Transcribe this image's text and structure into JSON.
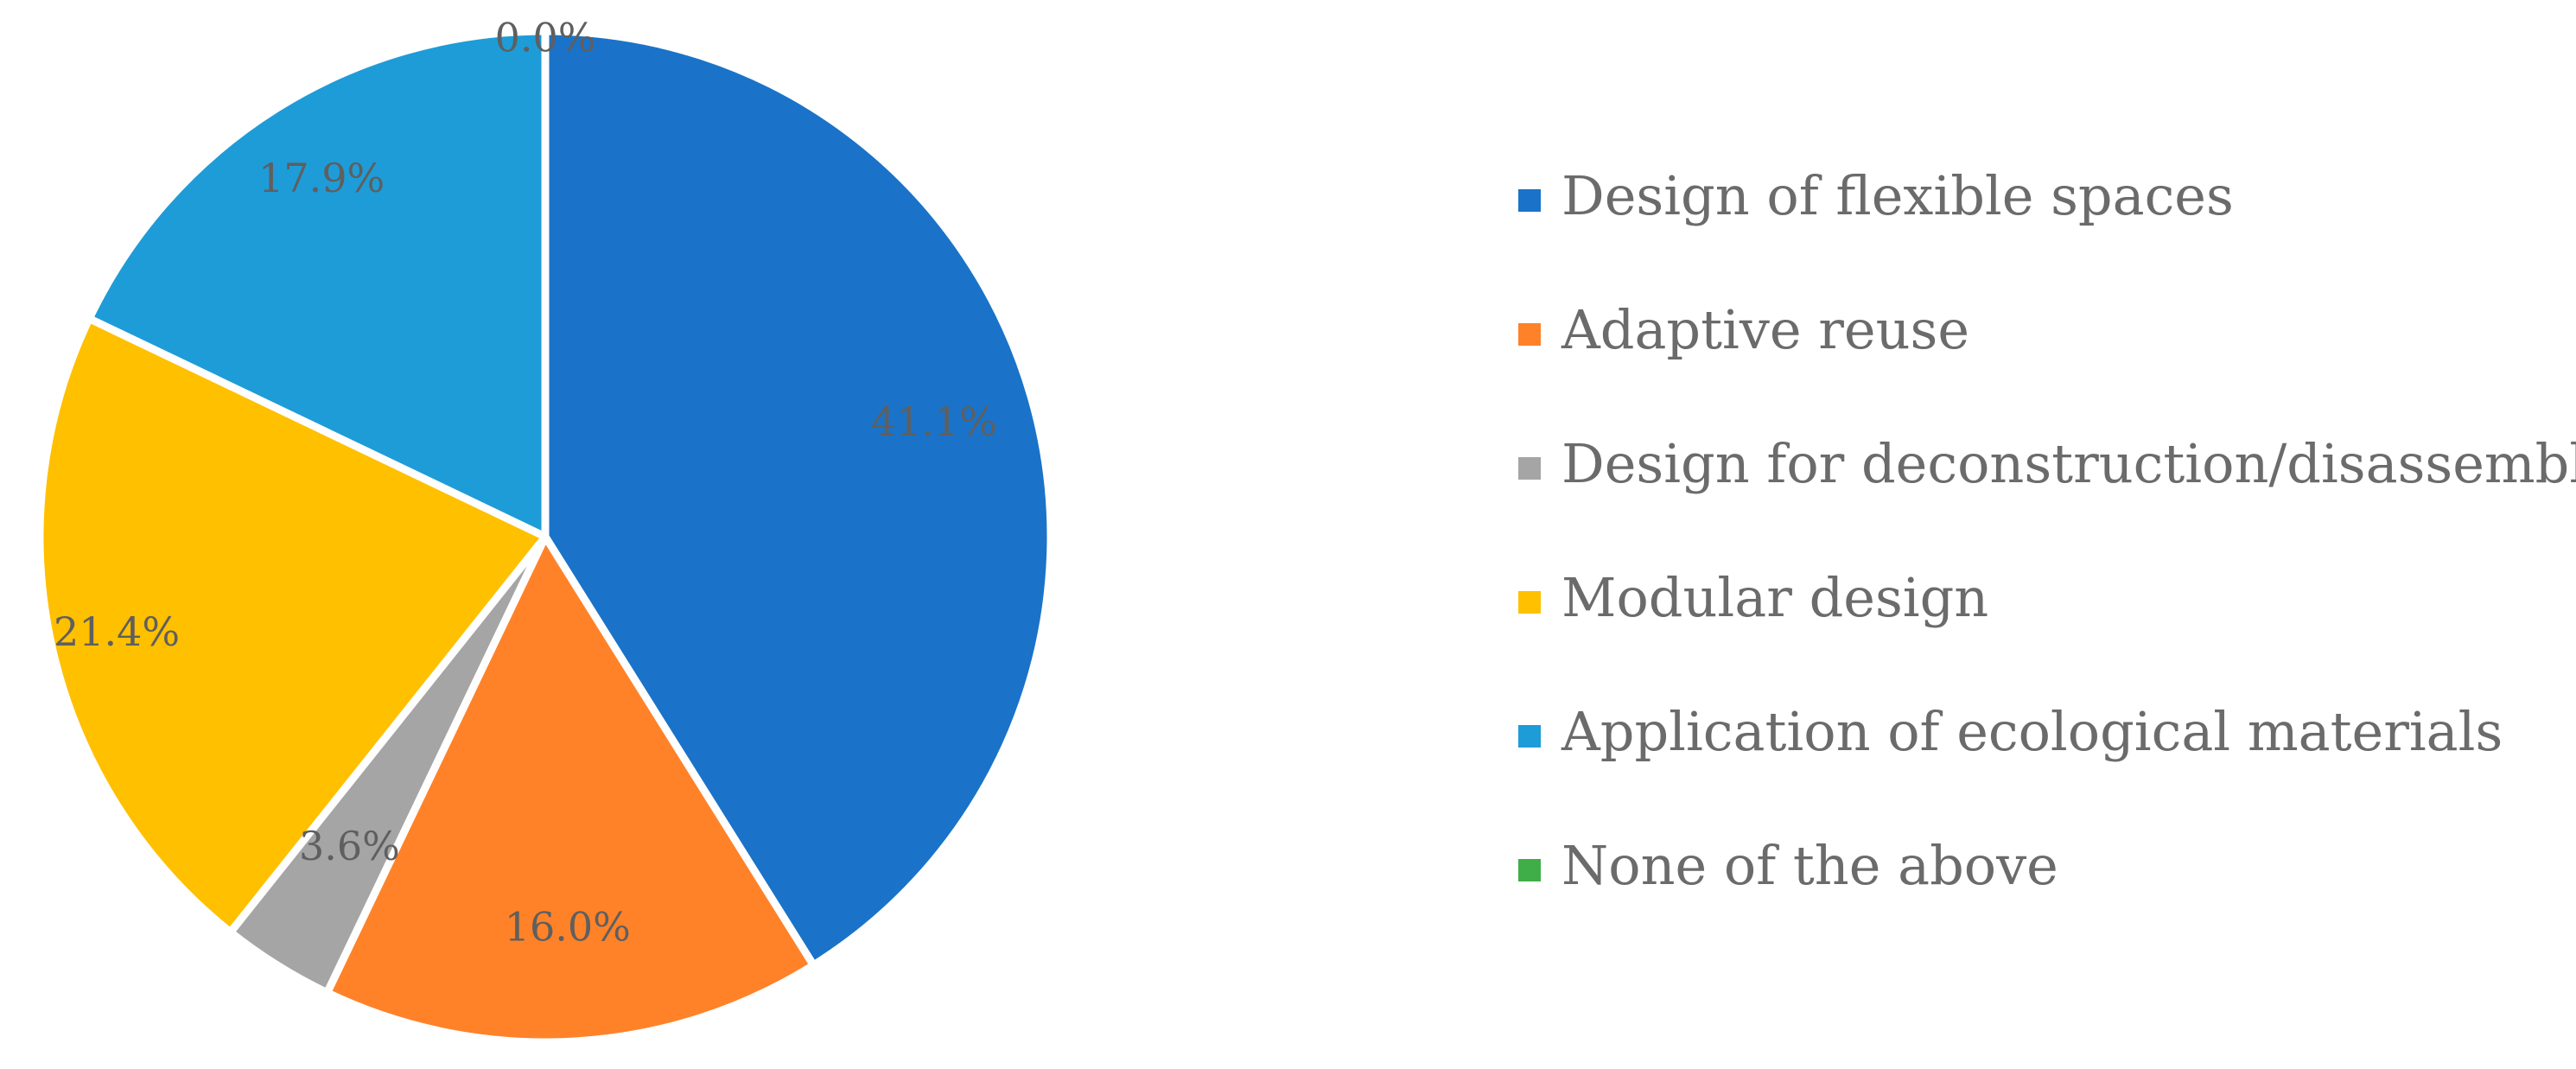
{
  "chart_data": {
    "type": "pie",
    "start_angle_deg": 0,
    "direction": "clockwise",
    "slices": [
      {
        "label": "Design of flexible spaces",
        "value": 41.1,
        "display": "41.1%",
        "color": "#1a73c8"
      },
      {
        "label": "Adaptive reuse",
        "value": 16.0,
        "display": "16.0%",
        "color": "#ff8229"
      },
      {
        "label": "Design for deconstruction/disassembly",
        "value": 3.6,
        "display": "3.6%",
        "color": "#a5a5a5"
      },
      {
        "label": "Modular design",
        "value": 21.4,
        "display": "21.4%",
        "color": "#ffc000"
      },
      {
        "label": "Application of ecological materials",
        "value": 17.9,
        "display": "17.9%",
        "color": "#1e9cd8"
      },
      {
        "label": "None of the above",
        "value": 0.0,
        "display": "0.0%",
        "color": "#3fae49"
      }
    ],
    "legend_position": "right",
    "slice_border_color": "#ffffff"
  }
}
